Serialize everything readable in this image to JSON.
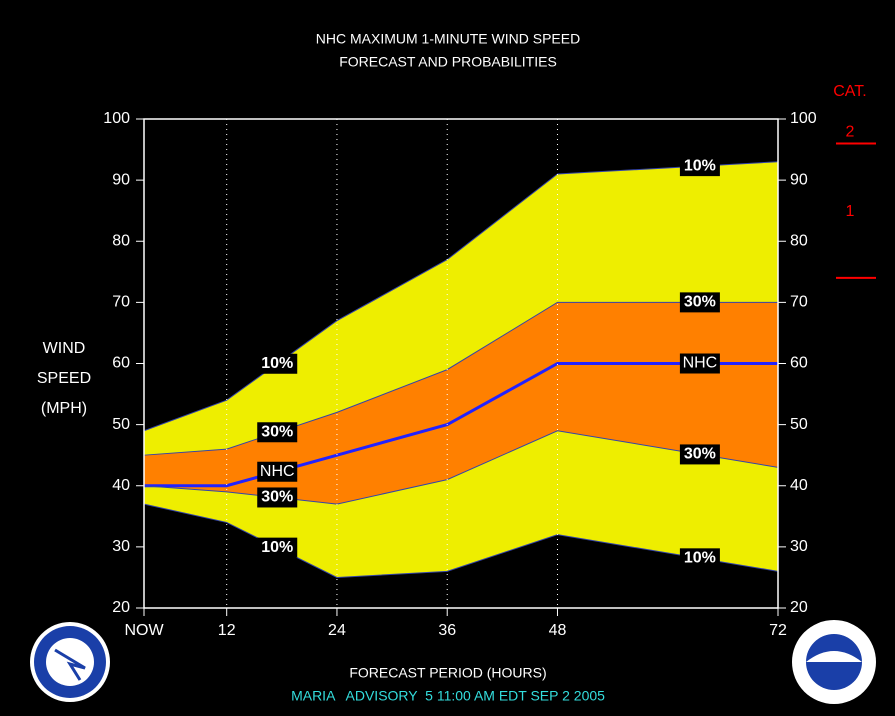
{
  "chart_data": {
    "type": "band",
    "title": "NHC MAXIMUM 1-MINUTE WIND SPEED",
    "subtitle": "FORECAST AND PROBABILITIES",
    "ylabel": [
      "WIND",
      "SPEED",
      "(MPH)"
    ],
    "xlabel": "FORECAST PERIOD (HOURS)",
    "footer": "MARIA   ADVISORY  5 11:00 AM EDT SEP 2 2005",
    "x": [
      3,
      12,
      24,
      36,
      48,
      72
    ],
    "xlim": [
      3,
      72
    ],
    "xticks": [
      {
        "value": 3,
        "label": "NOW"
      },
      12,
      24,
      36,
      48,
      72
    ],
    "ylim": [
      20,
      100
    ],
    "yticks": [
      20,
      30,
      40,
      50,
      60,
      70,
      80,
      90,
      100
    ],
    "y2lim": [
      20,
      100
    ],
    "y2ticks": [
      20,
      30,
      40,
      50,
      60,
      70,
      80,
      90,
      100
    ],
    "grid": true,
    "series": [
      {
        "name": "10%",
        "color": "#eeee00",
        "values": [
          49,
          54,
          67,
          77,
          91,
          93
        ]
      },
      {
        "name": "30%",
        "color": "#ff8000",
        "values": [
          45,
          46,
          52,
          59,
          70,
          70
        ]
      },
      {
        "name": "NHC",
        "color": "#2222ff",
        "values": [
          40,
          40,
          45,
          50,
          60,
          60
        ]
      },
      {
        "name": "30%",
        "color": "#ff8000",
        "values": [
          40,
          39,
          37,
          41,
          49,
          43
        ]
      },
      {
        "name": "10%",
        "color": "#eeee00",
        "values": [
          37,
          34,
          25,
          26,
          32,
          26
        ]
      }
    ],
    "category_title": "CAT.",
    "categories_lines": [
      {
        "label": "2",
        "value": 96
      },
      {
        "label": "1",
        "value": 74
      }
    ],
    "category_color": "#ff0000"
  }
}
